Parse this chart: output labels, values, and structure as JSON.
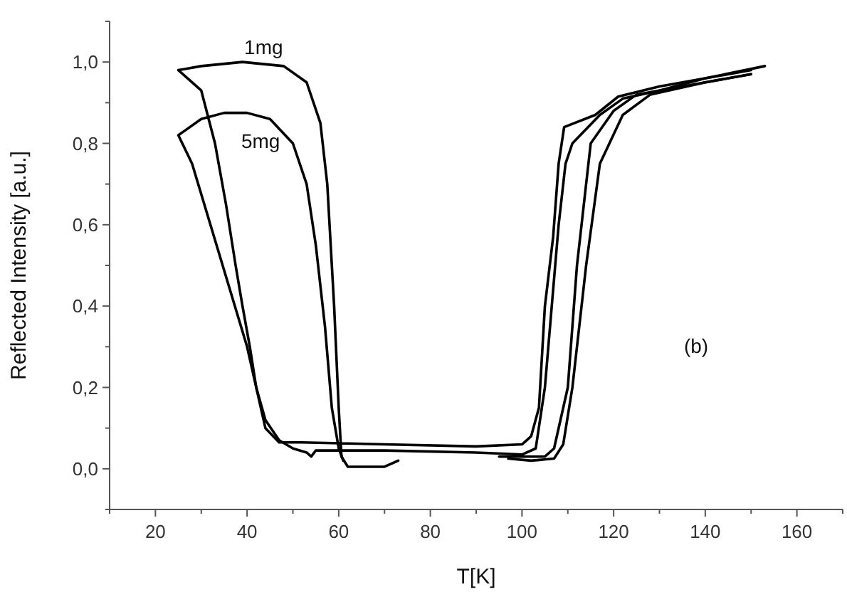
{
  "chart_data": {
    "type": "line",
    "xlabel": "T[K]",
    "ylabel": "Reflected Intensity [a.u.]",
    "xlim": [
      10,
      170
    ],
    "ylim": [
      -0.1,
      1.1
    ],
    "xticks": [
      {
        "value": 10,
        "label": null
      },
      20,
      {
        "value": 30,
        "label": null
      },
      40,
      {
        "value": 50,
        "label": null
      },
      60,
      {
        "value": 70,
        "label": null
      },
      80,
      {
        "value": 90,
        "label": null
      },
      100,
      {
        "value": 110,
        "label": null
      },
      120,
      {
        "value": 130,
        "label": null
      },
      140,
      {
        "value": 150,
        "label": null
      },
      160,
      {
        "value": 170,
        "label": null
      }
    ],
    "yticks": [
      {
        "value": -0.1,
        "label": null
      },
      {
        "value": 0,
        "label": "0,0"
      },
      {
        "value": 0.1,
        "label": null
      },
      {
        "value": 0.2,
        "label": "0,2"
      },
      {
        "value": 0.3,
        "label": null
      },
      {
        "value": 0.4,
        "label": "0,4"
      },
      {
        "value": 0.5,
        "label": null
      },
      {
        "value": 0.6,
        "label": "0,6"
      },
      {
        "value": 0.7,
        "label": null
      },
      {
        "value": 0.8,
        "label": "0,8"
      },
      {
        "value": 0.9,
        "label": null
      },
      {
        "value": 1.0,
        "label": "1,0"
      },
      {
        "value": 1.1,
        "label": null
      }
    ],
    "grid": false,
    "marker": "none",
    "line_style": "solid",
    "series": [
      {
        "color": "#000000",
        "x": [
          73,
          70,
          62,
          60.6,
          60,
          59,
          57.5,
          56,
          53,
          48,
          39,
          30,
          25,
          30,
          33,
          35.4,
          37.5,
          39,
          40.6,
          42,
          44,
          47,
          52,
          70,
          90,
          100,
          102,
          103.7,
          105,
          106.8,
          108,
          109.2,
          116,
          121,
          130,
          140,
          153
        ],
        "values": [
          0.02,
          0.005,
          0.005,
          0.03,
          0.15,
          0.4,
          0.7,
          0.85,
          0.95,
          0.99,
          1.0,
          0.99,
          0.98,
          0.93,
          0.8,
          0.65,
          0.5,
          0.4,
          0.3,
          0.2,
          0.1,
          0.065,
          0.065,
          0.06,
          0.055,
          0.06,
          0.08,
          0.15,
          0.4,
          0.57,
          0.75,
          0.84,
          0.87,
          0.915,
          0.94,
          0.96,
          0.99
        ]
      },
      {
        "color": "#000000",
        "x": [
          61,
          60,
          58.5,
          57,
          55,
          53,
          50,
          45,
          40,
          35,
          30,
          25,
          28,
          32,
          36,
          40,
          42,
          44,
          47,
          50,
          53,
          54,
          55,
          70,
          90,
          100,
          103,
          105,
          106.5,
          108,
          109.5,
          111,
          117,
          122,
          130,
          140,
          150
        ],
        "values": [
          0.02,
          0.05,
          0.15,
          0.35,
          0.55,
          0.7,
          0.8,
          0.86,
          0.875,
          0.875,
          0.86,
          0.82,
          0.75,
          0.6,
          0.45,
          0.3,
          0.2,
          0.12,
          0.07,
          0.05,
          0.04,
          0.03,
          0.045,
          0.045,
          0.04,
          0.035,
          0.05,
          0.2,
          0.4,
          0.6,
          0.75,
          0.8,
          0.87,
          0.91,
          0.93,
          0.95,
          0.97
        ]
      },
      {
        "color": "#000000",
        "x": [
          150,
          140,
          130,
          125,
          120,
          115,
          112,
          110,
          107,
          105,
          95
        ],
        "values": [
          0.98,
          0.96,
          0.93,
          0.92,
          0.88,
          0.8,
          0.5,
          0.2,
          0.05,
          0.03,
          0.03
        ]
      },
      {
        "color": "#000000",
        "x": [
          150,
          140,
          128,
          122,
          117,
          114,
          111,
          109,
          107,
          102,
          97
        ],
        "values": [
          0.97,
          0.95,
          0.92,
          0.87,
          0.75,
          0.5,
          0.2,
          0.06,
          0.025,
          0.02,
          0.025
        ]
      }
    ],
    "annotations": [
      "1mg",
      "5mg",
      "(b)"
    ]
  }
}
